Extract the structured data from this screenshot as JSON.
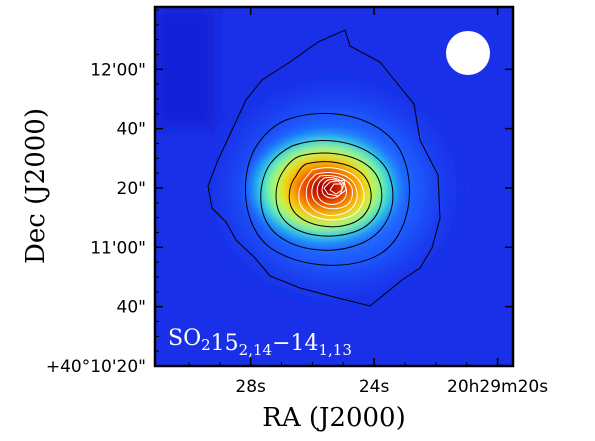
{
  "chart_data": {
    "type": "heatmap",
    "title": "SO₂ 15₂,₁₄−14₁,₁₃",
    "molecule": "SO",
    "molecule_sub": "2",
    "upper_level": "15",
    "upper_level_sub": "2,14",
    "separator": "−",
    "lower_level": "14",
    "lower_level_sub": "1,13",
    "xlabel": "RA (J2000)",
    "ylabel": "Dec (J2000)",
    "x_ticks": [
      {
        "label": "28s",
        "sec": 28
      },
      {
        "label": "24s",
        "sec": 24
      },
      {
        "label": "20h29m20s",
        "sec": 20
      }
    ],
    "y_ticks": [
      {
        "label": "12'00\"",
        "arcsec": 100
      },
      {
        "label": "40\"",
        "arcsec": 80
      },
      {
        "label": "20\"",
        "arcsec": 60
      },
      {
        "label": "11'00\"",
        "arcsec": 40
      },
      {
        "label": "40\"",
        "arcsec": 20
      },
      {
        "label": "+40°10'20\"",
        "arcsec": 0
      }
    ],
    "xlim_sec": [
      31.1,
      19.5
    ],
    "ylim_arcsec": [
      0,
      121
    ],
    "peak": {
      "ra_sec": 24.2,
      "dec_arcsec": 59
    },
    "beam": {
      "shape": "circle",
      "color": "#ffffff",
      "location": "top-right"
    },
    "colormap": "jet",
    "contour_colors": [
      "#000000",
      "#ffffff"
    ],
    "grid": false,
    "legend": "none"
  }
}
